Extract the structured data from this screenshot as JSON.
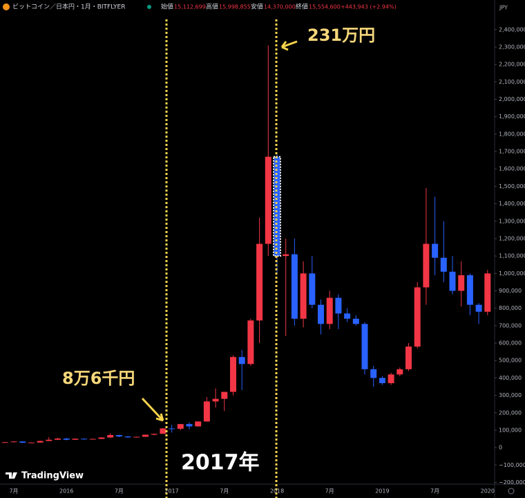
{
  "chart_data": {
    "type": "candlestick",
    "symbol": "ビットコイン／日本円・1月・BITFLYER",
    "ohlc_header": [
      {
        "label": "始値",
        "value": "15,112,699"
      },
      {
        "label": "高値",
        "value": "15,998,855"
      },
      {
        "label": "安値",
        "value": "14,370,000"
      },
      {
        "label": "終値",
        "value": "15,554,600"
      }
    ],
    "change": "+443,943 (+2.94%)",
    "currency": "JPY",
    "brand": "TradingView",
    "annotations": [
      "231万円",
      "8万6千円",
      "2017年"
    ],
    "up_color": "#f23645",
    "down_color": "#2962ff",
    "categories": [
      null,
      "7月",
      null,
      null,
      null,
      null,
      null,
      "2016",
      null,
      null,
      null,
      null,
      null,
      "7月",
      null,
      null,
      null,
      null,
      null,
      "2017",
      null,
      null,
      null,
      null,
      null,
      "7月",
      null,
      null,
      null,
      null,
      null,
      "2018",
      null,
      null,
      null,
      null,
      null,
      "7月",
      null,
      null,
      null,
      null,
      null,
      "2019",
      null,
      null,
      null,
      null,
      null,
      "7月",
      null,
      null,
      null,
      null,
      null,
      "2020"
    ],
    "open": [
      29000,
      31000,
      35000,
      28000,
      29000,
      38000,
      45000,
      52000,
      45000,
      51000,
      47000,
      50000,
      58000,
      72000,
      64000,
      59000,
      62000,
      74000,
      79000,
      110000,
      108000,
      135000,
      122000,
      150000,
      265000,
      280000,
      320000,
      520000,
      480000,
      730000,
      1170000,
      1670000,
      1100000,
      1110000,
      740000,
      1000000,
      820000,
      710000,
      860000,
      770000,
      740000,
      710000,
      450000,
      400000,
      370000,
      420000,
      450000,
      580000,
      920000,
      1170000,
      1090000,
      1010000,
      900000,
      990000,
      820000,
      780000
    ],
    "high": [
      33000,
      37000,
      36000,
      30000,
      40000,
      60000,
      56000,
      56000,
      53000,
      52000,
      52000,
      60000,
      82000,
      74000,
      66000,
      63000,
      75000,
      80000,
      112000,
      130000,
      135000,
      145000,
      150000,
      290000,
      340000,
      320000,
      530000,
      560000,
      740000,
      1320000,
      2310000,
      1690000,
      1200000,
      1200000,
      1070000,
      1100000,
      850000,
      900000,
      880000,
      800000,
      760000,
      720000,
      470000,
      410000,
      430000,
      460000,
      600000,
      950000,
      1490000,
      1440000,
      1300000,
      1100000,
      1070000,
      1000000,
      830000,
      1020000
    ],
    "low": [
      27000,
      30000,
      25000,
      27000,
      28000,
      37000,
      43000,
      42000,
      44000,
      45000,
      46000,
      48000,
      56000,
      60000,
      55000,
      57000,
      61000,
      70000,
      78000,
      86000,
      100000,
      105000,
      120000,
      148000,
      230000,
      210000,
      300000,
      330000,
      470000,
      600000,
      1100000,
      1000000,
      640000,
      700000,
      690000,
      800000,
      650000,
      680000,
      680000,
      720000,
      700000,
      420000,
      350000,
      360000,
      360000,
      410000,
      440000,
      570000,
      820000,
      990000,
      950000,
      880000,
      810000,
      760000,
      710000,
      760000
    ],
    "close": [
      31000,
      35000,
      28000,
      29000,
      38000,
      45000,
      52000,
      45000,
      51000,
      47000,
      50000,
      58000,
      72000,
      64000,
      59000,
      62000,
      74000,
      79000,
      110000,
      108000,
      135000,
      122000,
      150000,
      265000,
      280000,
      320000,
      520000,
      480000,
      730000,
      1170000,
      1670000,
      1100000,
      1110000,
      740000,
      1000000,
      820000,
      710000,
      860000,
      770000,
      740000,
      710000,
      450000,
      400000,
      370000,
      420000,
      450000,
      580000,
      920000,
      1170000,
      1090000,
      1010000,
      900000,
      990000,
      820000,
      780000,
      1000000
    ],
    "ylim": [
      -210000,
      2570000
    ],
    "yticks": [
      {
        "value": -200000,
        "label": "−200,000"
      },
      {
        "value": -100000,
        "label": "−100,000"
      },
      0,
      {
        "value": 100000,
        "label": "100,000"
      },
      {
        "value": 200000,
        "label": "200,000"
      },
      {
        "value": 300000,
        "label": "300,000"
      },
      {
        "value": 400000,
        "label": "400,000"
      },
      {
        "value": 500000,
        "label": "500,000"
      },
      {
        "value": 600000,
        "label": "600,000"
      },
      {
        "value": 700000,
        "label": "700,000"
      },
      {
        "value": 800000,
        "label": "800,000"
      },
      {
        "value": 900000,
        "label": "900,000"
      },
      {
        "value": 1000000,
        "label": "1,000,000"
      },
      {
        "value": 1100000,
        "label": "1,100,000"
      },
      {
        "value": 1200000,
        "label": "1,200,000"
      },
      {
        "value": 1300000,
        "label": "1,300,000"
      },
      {
        "value": 1400000,
        "label": "1,400,000"
      },
      {
        "value": 1500000,
        "label": "1,500,000"
      },
      {
        "value": 1600000,
        "label": "1,600,000"
      },
      {
        "value": 1700000,
        "label": "1,700,000"
      },
      {
        "value": 1800000,
        "label": "1,800,000"
      },
      {
        "value": 1900000,
        "label": "1,900,000"
      },
      {
        "value": 2000000,
        "label": "2,000,000"
      },
      {
        "value": 2100000,
        "label": "2,100,000"
      },
      {
        "value": 2200000,
        "label": "2,200,000"
      },
      {
        "value": 2300000,
        "label": "2,300,000"
      },
      {
        "value": 2400000,
        "label": "2,400,000"
      }
    ],
    "grid": false
  }
}
